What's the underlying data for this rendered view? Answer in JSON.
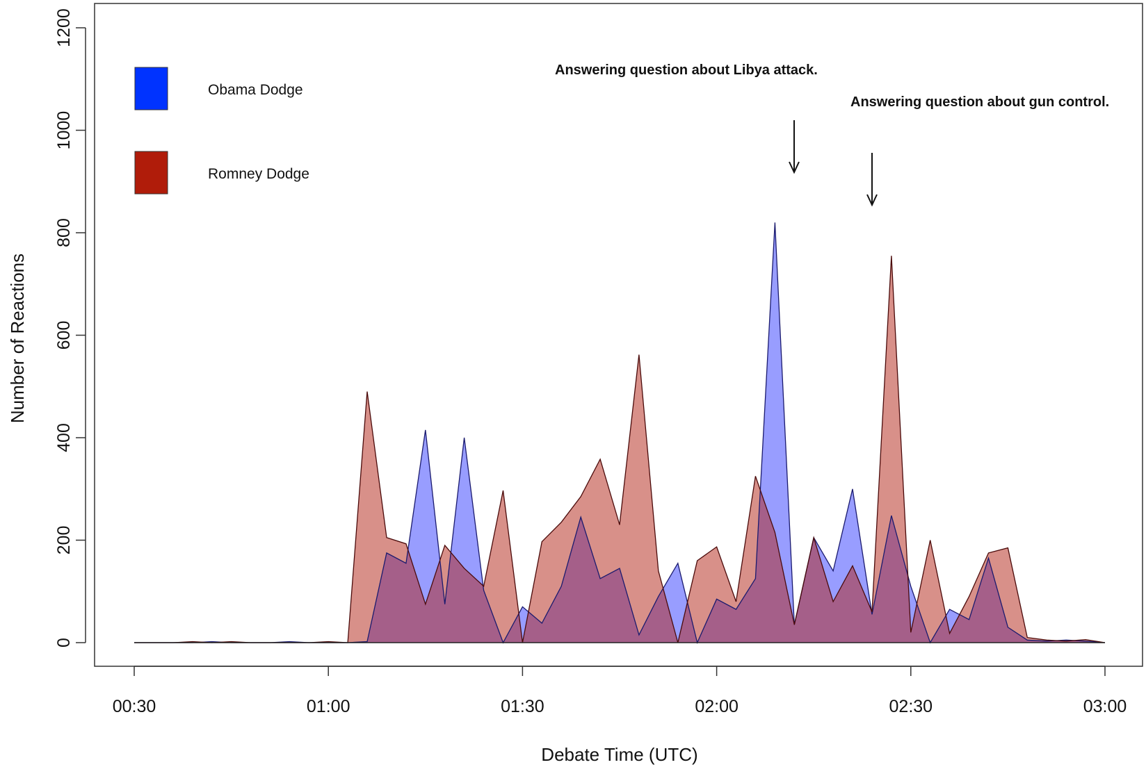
{
  "chart_data": {
    "type": "area",
    "title": "",
    "xlabel": "Debate Time (UTC)",
    "ylabel": "Number of Reactions",
    "x_ticks": [
      "00:30",
      "01:00",
      "01:30",
      "02:00",
      "02:30",
      "03:00"
    ],
    "y_ticks": [
      "0",
      "200",
      "400",
      "600",
      "800",
      "1000",
      "1200"
    ],
    "ylim": [
      0,
      1200
    ],
    "xlim": [
      "00:30",
      "03:00"
    ],
    "grid": false,
    "legend_position": "top-left",
    "x": [
      "00:30",
      "00:33",
      "00:36",
      "00:39",
      "00:42",
      "00:45",
      "00:48",
      "00:51",
      "00:54",
      "00:57",
      "01:00",
      "01:03",
      "01:06",
      "01:09",
      "01:12",
      "01:15",
      "01:18",
      "01:21",
      "01:24",
      "01:27",
      "01:30",
      "01:33",
      "01:36",
      "01:39",
      "01:42",
      "01:45",
      "01:48",
      "01:51",
      "01:54",
      "01:57",
      "02:00",
      "02:03",
      "02:06",
      "02:09",
      "02:12",
      "02:15",
      "02:18",
      "02:21",
      "02:24",
      "02:27",
      "02:30",
      "02:33",
      "02:36",
      "02:39",
      "02:42",
      "02:45",
      "02:48",
      "02:51",
      "02:54",
      "02:57",
      "03:00"
    ],
    "series": [
      {
        "name": "Obama Dodge",
        "color": "#0033ff",
        "fill": "rgba(50,60,255,0.5)",
        "values": [
          0,
          0,
          0,
          0,
          2,
          0,
          0,
          0,
          2,
          0,
          0,
          0,
          2,
          175,
          155,
          415,
          75,
          400,
          102,
          0,
          70,
          38,
          110,
          245,
          125,
          145,
          15,
          90,
          155,
          0,
          85,
          65,
          125,
          820,
          35,
          205,
          140,
          300,
          55,
          248,
          110,
          0,
          65,
          45,
          165,
          30,
          5,
          3,
          5,
          3,
          0
        ]
      },
      {
        "name": "Romney Dodge",
        "color": "#b01c0a",
        "fill": "rgba(178,34,20,0.5)",
        "values": [
          0,
          0,
          0,
          2,
          0,
          2,
          0,
          0,
          0,
          0,
          2,
          0,
          490,
          205,
          193,
          75,
          190,
          145,
          110,
          297,
          0,
          197,
          235,
          285,
          358,
          230,
          562,
          140,
          0,
          160,
          187,
          80,
          325,
          215,
          35,
          205,
          80,
          150,
          60,
          755,
          20,
          200,
          18,
          90,
          175,
          185,
          10,
          5,
          3,
          6,
          0
        ]
      }
    ],
    "legend": [
      {
        "label": "Obama Dodge",
        "color": "#0033ff"
      },
      {
        "label": "Romney Dodge",
        "color": "#b01c0a"
      }
    ],
    "annotations": [
      {
        "text": "Answering question about Libya attack.",
        "x": "02:12",
        "y": 910
      },
      {
        "text": "Answering question about gun control.",
        "x": "02:24",
        "y": 850
      }
    ]
  }
}
